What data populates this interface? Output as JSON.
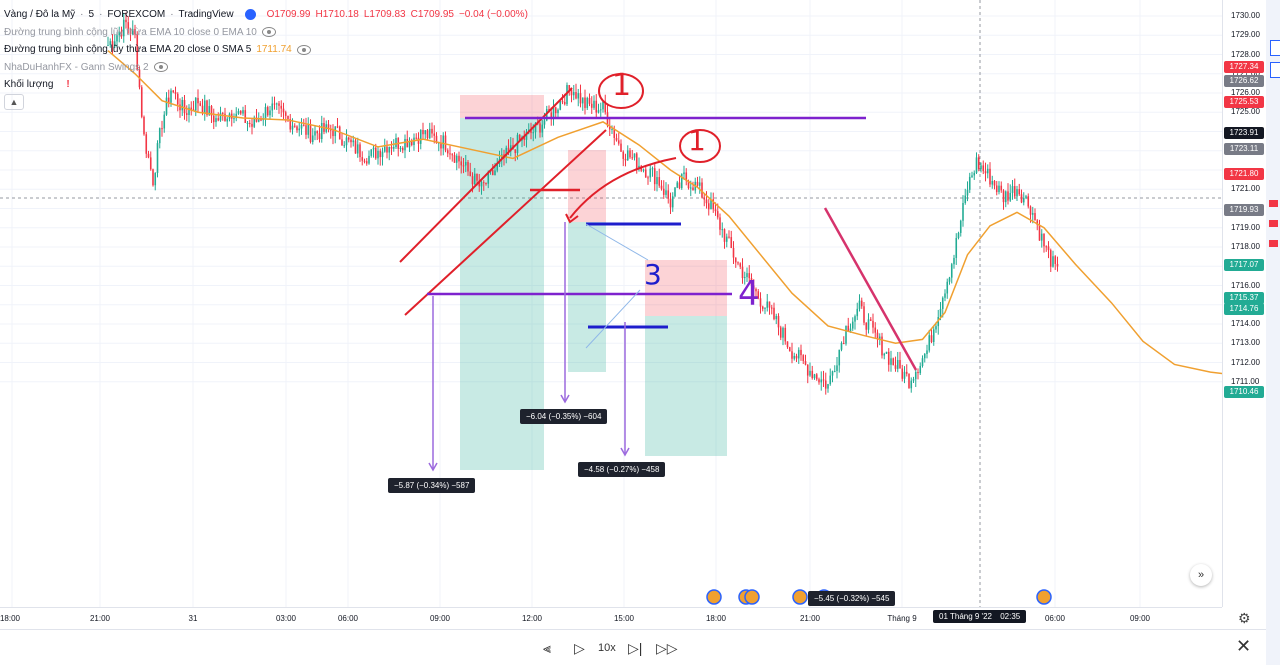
{
  "legend": {
    "symbol": "Vàng / Đô la Mỹ",
    "interval": "5",
    "exchange": "FOREXCOM",
    "source": "TradingView",
    "ohlc": {
      "o": "O1709.99",
      "h": "H1710.18",
      "l": "L1709.83",
      "c": "C1709.95",
      "chg": "−0.04 (−0.00%)"
    },
    "ema10": "Đường trung bình cộng lũy thừa EMA 10 close 0 EMA 10",
    "ema20": "Đường trung bình cộng lũy thừa EMA 20 close 0 SMA 5",
    "ema20_value": "1711.74",
    "gann": "NhaDuHanhFX - Gann Swings 2",
    "volume": "Khối lượng",
    "collapse_icon": "chevron-up-icon"
  },
  "price_axis": {
    "ticks": [
      "1730.00",
      "1729.00",
      "1728.00",
      "1727.00",
      "1726.00",
      "1725.00",
      "1723.00",
      "1721.00",
      "1719.00",
      "1718.00",
      "1716.00",
      "1714.00",
      "1713.00",
      "1712.00",
      "1711.00"
    ],
    "labels": [
      {
        "text": "1727.34",
        "color": "#f23645"
      },
      {
        "text": "1726.62",
        "color": "#787b86"
      },
      {
        "text": "1725.53",
        "color": "#f23645"
      },
      {
        "text": "1723.91",
        "color": "#131722"
      },
      {
        "text": "1723.11",
        "color": "#787b86"
      },
      {
        "text": "1721.80",
        "color": "#f23645"
      },
      {
        "text": "1719.93",
        "color": "#787b86"
      },
      {
        "text": "1717.07",
        "color": "#22ab94"
      },
      {
        "text": "1715.37",
        "color": "#22ab94"
      },
      {
        "text": "1714.76",
        "color": "#22ab94"
      },
      {
        "text": "1710.46",
        "color": "#22ab94"
      }
    ]
  },
  "time_axis": {
    "ticks": [
      "18:00",
      "21:00",
      "31",
      "03:00",
      "06:00",
      "09:00",
      "12:00",
      "15:00",
      "18:00",
      "21:00",
      "Tháng 9",
      "06:00",
      "09:00"
    ],
    "cursor_date": "01 Tháng 9 '22",
    "cursor_time": "02:35"
  },
  "measurements": [
    "−5.87 (−0.34%) −587",
    "−6.04 (−0.35%) −604",
    "−4.58 (−0.27%) −458",
    "−5.45 (−0.32%) −545"
  ],
  "annotations": {
    "n1a": "1",
    "n1b": "1",
    "n3": "3",
    "n4": "4"
  },
  "playback": {
    "speed": "10x"
  },
  "colors": {
    "up": "#22ab94",
    "down": "#f23645",
    "ema": "#f0a030",
    "purple": "#7e22ce",
    "blue": "#1d1dcc",
    "red": "#e0202a"
  },
  "chart_data": {
    "type": "candlestick",
    "symbol": "XAU/USD 5m",
    "ylim": [
      1710.3,
      1730.3
    ],
    "x_ticks": [
      "18:00",
      "21:00",
      "31",
      "03:00",
      "06:00",
      "09:00",
      "12:00",
      "15:00",
      "18:00",
      "21:00",
      "Tháng 9",
      "06:00",
      "09:00"
    ],
    "path": [
      [
        0,
        1728.5
      ],
      [
        8,
        1729.6
      ],
      [
        12,
        1728.9
      ],
      [
        16,
        1723.7
      ],
      [
        20,
        1721.5
      ],
      [
        24,
        1724.5
      ],
      [
        28,
        1726.2
      ],
      [
        34,
        1725.0
      ],
      [
        40,
        1725.6
      ],
      [
        48,
        1724.6
      ],
      [
        56,
        1725.1
      ],
      [
        64,
        1724.3
      ],
      [
        72,
        1725.3
      ],
      [
        80,
        1724.6
      ],
      [
        90,
        1723.9
      ],
      [
        100,
        1724.1
      ],
      [
        110,
        1723.1
      ],
      [
        116,
        1722.7
      ],
      [
        124,
        1723.3
      ],
      [
        132,
        1723.5
      ],
      [
        140,
        1723.9
      ],
      [
        150,
        1723.4
      ],
      [
        158,
        1722.2
      ],
      [
        166,
        1721.0
      ],
      [
        174,
        1722.3
      ],
      [
        182,
        1723.4
      ],
      [
        190,
        1724.1
      ],
      [
        198,
        1725.1
      ],
      [
        206,
        1726.3
      ],
      [
        212,
        1725.4
      ],
      [
        220,
        1725.2
      ],
      [
        228,
        1723.1
      ],
      [
        236,
        1722.3
      ],
      [
        244,
        1721.6
      ],
      [
        250,
        1720.3
      ],
      [
        256,
        1721.6
      ],
      [
        262,
        1721.1
      ],
      [
        268,
        1720.1
      ],
      [
        274,
        1718.6
      ],
      [
        280,
        1717.1
      ],
      [
        288,
        1715.6
      ],
      [
        296,
        1714.3
      ],
      [
        304,
        1712.6
      ],
      [
        312,
        1711.6
      ],
      [
        320,
        1710.8
      ],
      [
        328,
        1713.8
      ],
      [
        334,
        1714.8
      ],
      [
        340,
        1713.5
      ],
      [
        348,
        1712.1
      ],
      [
        356,
        1711.1
      ],
      [
        364,
        1712.6
      ],
      [
        370,
        1715.1
      ],
      [
        376,
        1717.6
      ],
      [
        382,
        1721.1
      ],
      [
        386,
        1722.4
      ],
      [
        392,
        1721.6
      ],
      [
        398,
        1720.6
      ],
      [
        404,
        1721.1
      ],
      [
        410,
        1720.1
      ],
      [
        416,
        1718.1
      ],
      [
        424,
        1716.1
      ],
      [
        432,
        1714.6
      ],
      [
        440,
        1713.6
      ],
      [
        448,
        1712.6
      ],
      [
        456,
        1711.6
      ],
      [
        464,
        1710.8
      ],
      [
        472,
        1711.0
      ],
      [
        480,
        1711.4
      ],
      [
        488,
        1711.1
      ],
      [
        496,
        1711.3
      ],
      [
        504,
        1710.9
      ]
    ],
    "ema20_series": [
      [
        0,
        1728.2
      ],
      [
        12,
        1727.0
      ],
      [
        24,
        1725.6
      ],
      [
        40,
        1725.0
      ],
      [
        60,
        1724.7
      ],
      [
        80,
        1724.6
      ],
      [
        100,
        1724.1
      ],
      [
        120,
        1723.2
      ],
      [
        140,
        1723.6
      ],
      [
        160,
        1723.1
      ],
      [
        180,
        1722.6
      ],
      [
        200,
        1723.7
      ],
      [
        220,
        1724.5
      ],
      [
        236,
        1723.3
      ],
      [
        250,
        1722.0
      ],
      [
        262,
        1721.1
      ],
      [
        276,
        1719.6
      ],
      [
        290,
        1717.6
      ],
      [
        304,
        1715.6
      ],
      [
        320,
        1713.9
      ],
      [
        336,
        1713.4
      ],
      [
        350,
        1713.0
      ],
      [
        362,
        1713.2
      ],
      [
        372,
        1714.6
      ],
      [
        382,
        1717.6
      ],
      [
        392,
        1719.1
      ],
      [
        404,
        1719.8
      ],
      [
        416,
        1719.0
      ],
      [
        430,
        1717.1
      ],
      [
        446,
        1715.1
      ],
      [
        460,
        1713.1
      ],
      [
        474,
        1711.9
      ],
      [
        490,
        1711.5
      ],
      [
        504,
        1711.3
      ]
    ]
  }
}
